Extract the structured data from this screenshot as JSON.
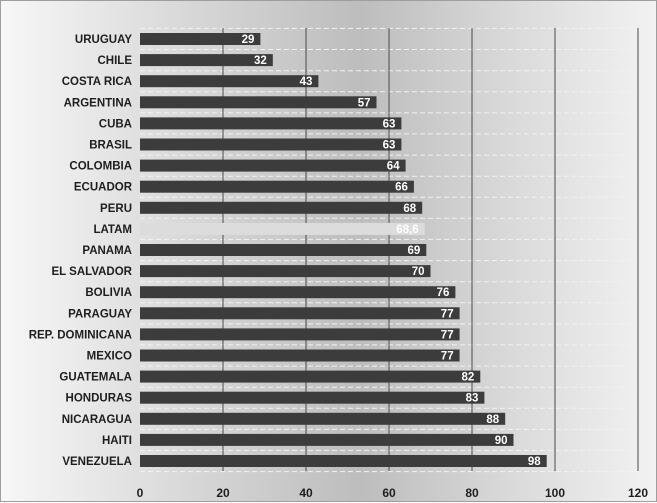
{
  "chart_data": {
    "type": "bar",
    "orientation": "horizontal",
    "title": "",
    "xlabel": "",
    "ylabel": "",
    "categories": [
      "URUGUAY",
      "CHILE",
      "COSTA RICA",
      "ARGENTINA",
      "CUBA",
      "BRASIL",
      "COLOMBIA",
      "ECUADOR",
      "PERU",
      "LATAM",
      "PANAMA",
      "EL SALVADOR",
      "BOLIVIA",
      "PARAGUAY",
      "REP. DOMINICANA",
      "MEXICO",
      "GUATEMALA",
      "HONDURAS",
      "NICARAGUA",
      "HAITI",
      "VENEZUELA"
    ],
    "values": [
      29,
      32,
      43,
      57,
      63,
      63,
      64,
      66,
      68,
      68.6,
      69,
      70,
      76,
      77,
      77,
      77,
      82,
      83,
      88,
      90,
      98
    ],
    "value_labels": [
      "29",
      "32",
      "43",
      "57",
      "63",
      "63",
      "64",
      "66",
      "68",
      "68,6",
      "69",
      "70",
      "76",
      "77",
      "77",
      "77",
      "82",
      "83",
      "88",
      "90",
      "98"
    ],
    "xlim": [
      0,
      120
    ],
    "x_ticks": [
      "0",
      "20",
      "40",
      "60",
      "80",
      "100",
      "120"
    ],
    "grid": true,
    "legend": "none",
    "colors": {
      "bar": "#3c3c3c",
      "highlight_bar": "#dcdcdc",
      "highlight_category": "LATAM",
      "grid_major": "#4a4a4a",
      "grid_minor": "#f2f2f2",
      "label_on_bar": "#ffffff",
      "label_on_highlight": "#ffffff"
    }
  }
}
